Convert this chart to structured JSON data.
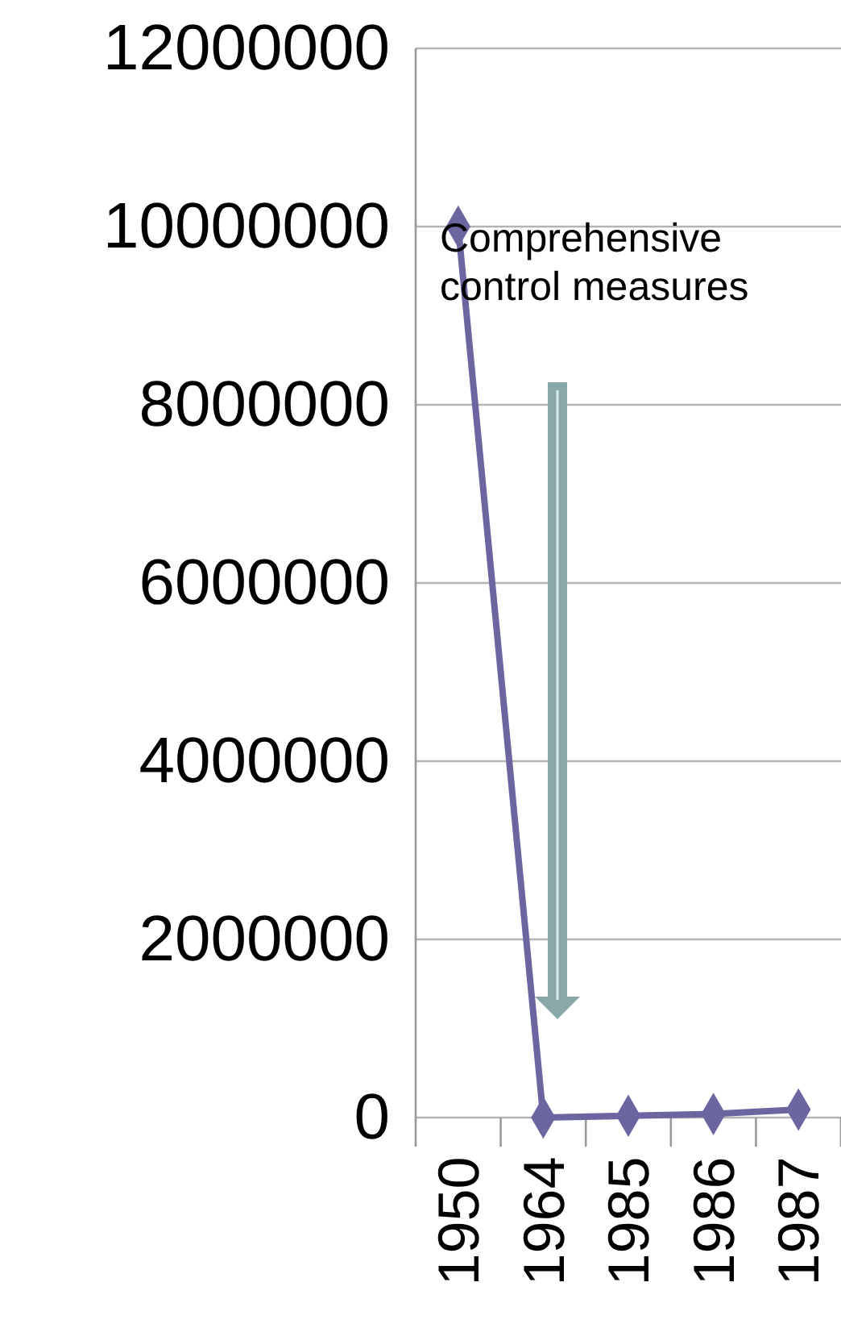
{
  "chart_data": {
    "type": "line",
    "categories": [
      "1950",
      "1964",
      "1985",
      "1986",
      "1987"
    ],
    "series": [
      {
        "color": "#6b66a0",
        "values": [
          10000000,
          0,
          20000,
          40000,
          90000
        ]
      }
    ],
    "ylim": [
      0,
      12000000
    ],
    "yticks": [
      0,
      2000000,
      4000000,
      6000000,
      8000000,
      10000000,
      12000000
    ],
    "grid": "y",
    "marker": "diamond",
    "line_style": "solid",
    "annotations": [
      "Comprehensive control measures"
    ]
  }
}
